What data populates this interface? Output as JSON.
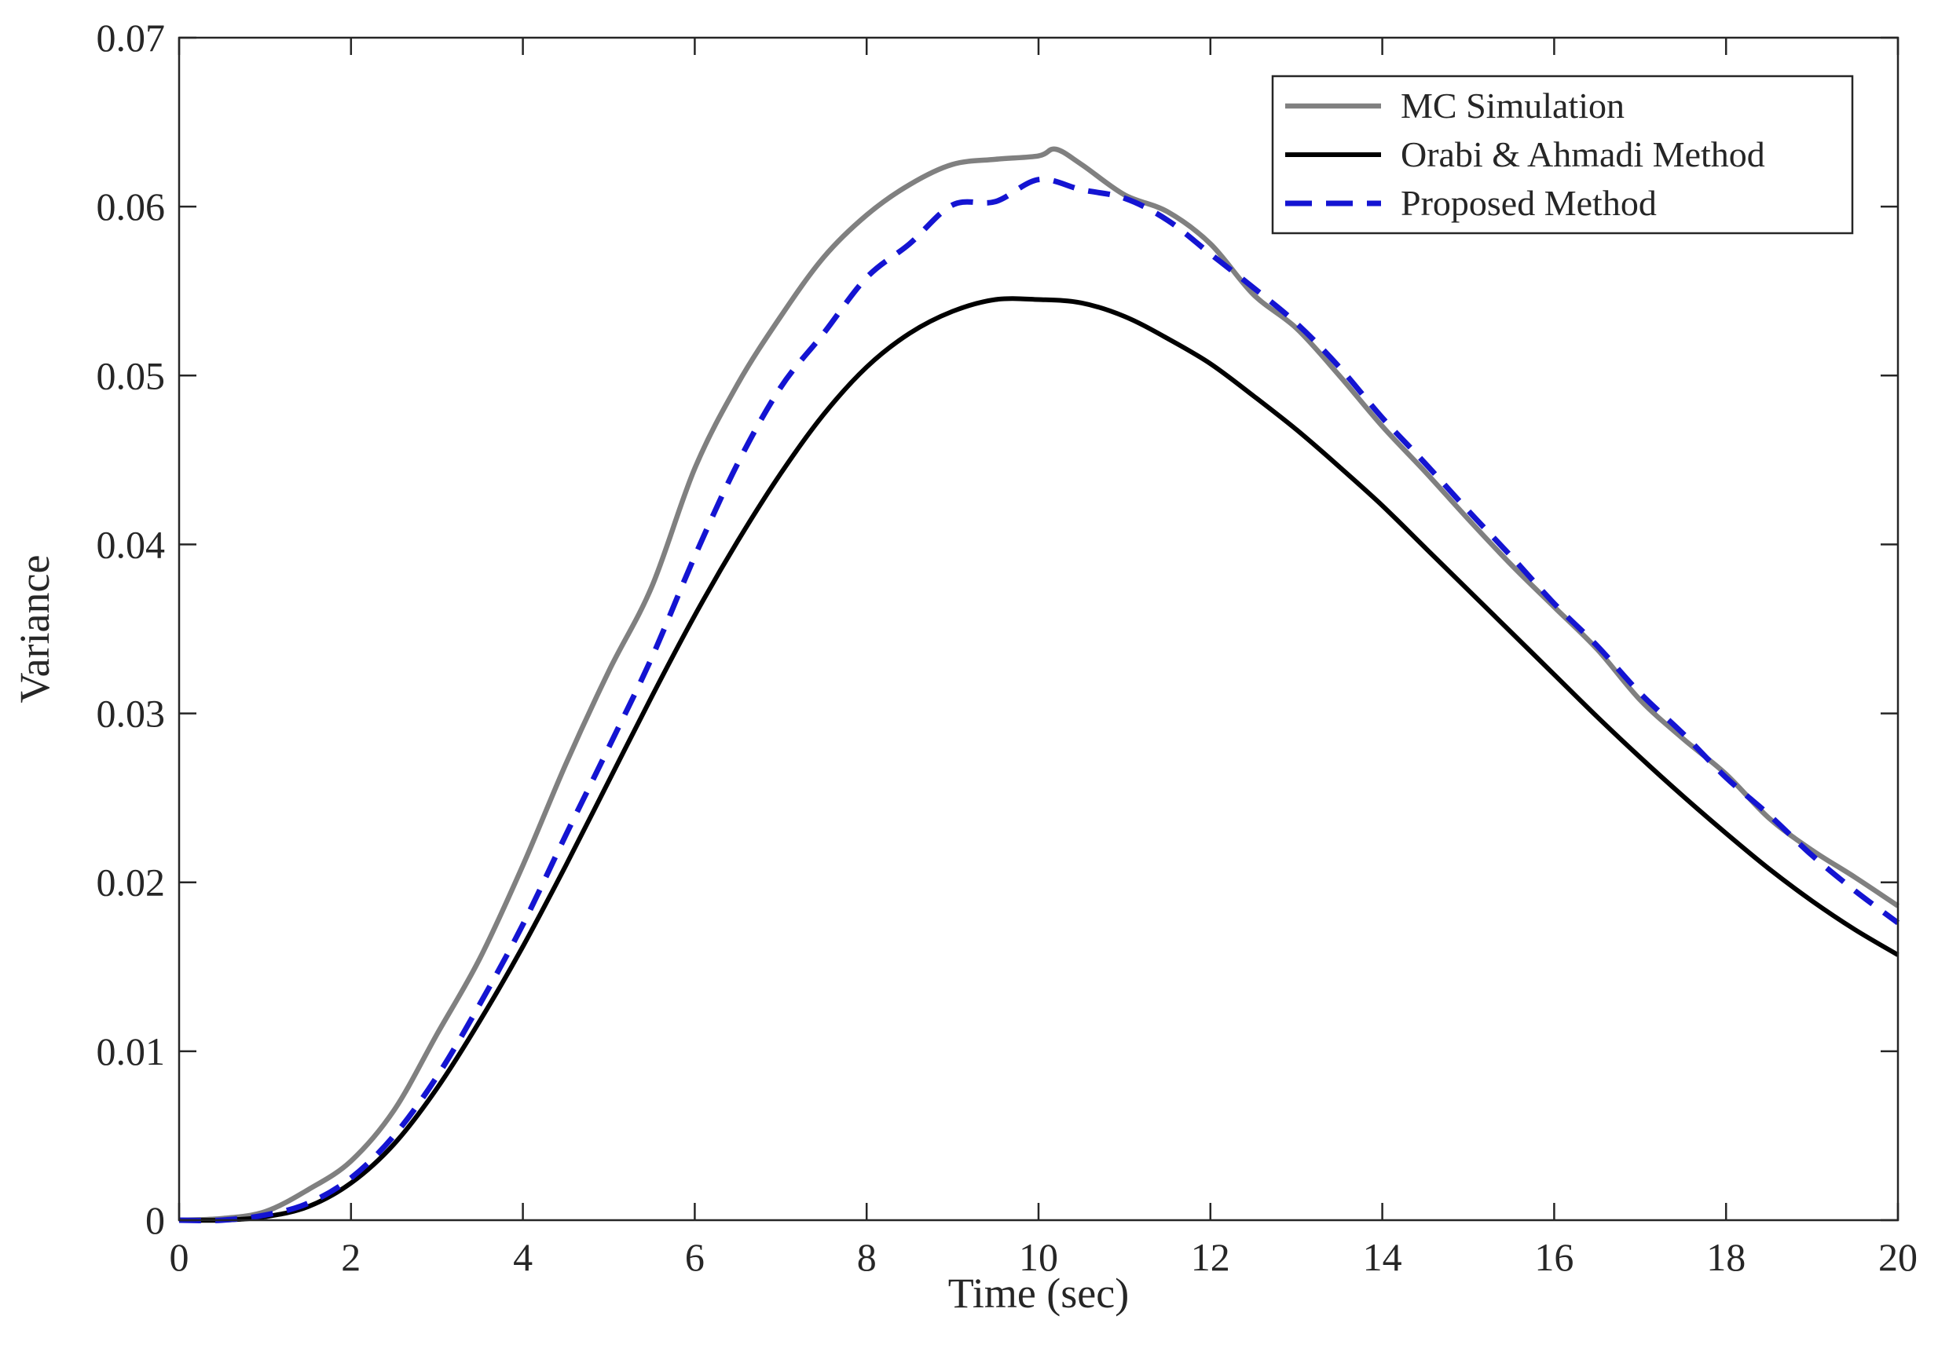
{
  "chart_data": {
    "type": "line",
    "title": "",
    "xlabel": "Time (sec)",
    "ylabel": "Variance",
    "xlim": [
      0,
      20
    ],
    "ylim": [
      0,
      0.07
    ],
    "xticks": [
      0,
      2,
      4,
      6,
      8,
      10,
      12,
      14,
      16,
      18,
      20
    ],
    "yticks": [
      0,
      0.01,
      0.02,
      0.03,
      0.04,
      0.05,
      0.06,
      0.07
    ],
    "xtick_labels": [
      "0",
      "2",
      "4",
      "6",
      "8",
      "10",
      "12",
      "14",
      "16",
      "18",
      "20"
    ],
    "ytick_labels": [
      "0",
      "0.01",
      "0.02",
      "0.03",
      "0.04",
      "0.05",
      "0.06",
      "0.07"
    ],
    "grid": false,
    "legend_position": "top-right",
    "series": [
      {
        "name": "MC Simulation",
        "color": "#808080",
        "style": "solid",
        "x": [
          0,
          0.5,
          1,
          1.5,
          2,
          2.5,
          3,
          3.5,
          4,
          4.5,
          5,
          5.5,
          6,
          6.5,
          7,
          7.5,
          8,
          8.5,
          9,
          9.5,
          10,
          10.2,
          10.5,
          11,
          11.5,
          12,
          12.5,
          13,
          13.5,
          14,
          14.5,
          15,
          15.5,
          16,
          16.5,
          17,
          17.5,
          18,
          18.5,
          19,
          19.5,
          20
        ],
        "values": [
          0,
          0.0001,
          0.0005,
          0.0018,
          0.0035,
          0.0065,
          0.011,
          0.0155,
          0.021,
          0.027,
          0.0325,
          0.0375,
          0.0445,
          0.0495,
          0.0535,
          0.057,
          0.0595,
          0.0613,
          0.0625,
          0.0628,
          0.063,
          0.0634,
          0.0625,
          0.0607,
          0.0597,
          0.0578,
          0.0548,
          0.0528,
          0.05,
          0.047,
          0.0443,
          0.0415,
          0.0388,
          0.0363,
          0.0338,
          0.0308,
          0.0285,
          0.0264,
          0.0238,
          0.0219,
          0.0203,
          0.0186
        ]
      },
      {
        "name": "Orabi & Ahmadi Method",
        "color": "#000000",
        "style": "solid",
        "x": [
          0,
          0.5,
          1,
          1.5,
          2,
          2.5,
          3,
          3.5,
          4,
          4.5,
          5,
          5.5,
          6,
          6.5,
          7,
          7.5,
          8,
          8.5,
          9,
          9.5,
          10,
          10.5,
          11,
          11.5,
          12,
          12.5,
          13,
          13.5,
          14,
          14.5,
          15,
          15.5,
          16,
          16.5,
          17,
          17.5,
          18,
          18.5,
          19,
          19.5,
          20
        ],
        "values": [
          0,
          0,
          0.0002,
          0.0008,
          0.0022,
          0.0045,
          0.0078,
          0.0118,
          0.0162,
          0.021,
          0.026,
          0.031,
          0.0358,
          0.0402,
          0.0442,
          0.0477,
          0.0505,
          0.0525,
          0.0538,
          0.0545,
          0.0545,
          0.0543,
          0.0535,
          0.0522,
          0.0507,
          0.0488,
          0.0468,
          0.0446,
          0.0423,
          0.0398,
          0.0373,
          0.0348,
          0.0323,
          0.0298,
          0.0274,
          0.0251,
          0.0229,
          0.0208,
          0.0189,
          0.0172,
          0.0157
        ]
      },
      {
        "name": "Proposed Method",
        "color": "#1414d2",
        "style": "dashed",
        "x": [
          0,
          0.5,
          1,
          1.5,
          2,
          2.5,
          3,
          3.5,
          4,
          4.5,
          5,
          5.5,
          6,
          6.5,
          7,
          7.5,
          8,
          8.5,
          9,
          9.5,
          10,
          10.5,
          11,
          11.5,
          12,
          12.5,
          13,
          13.5,
          14,
          14.5,
          15,
          15.5,
          16,
          16.5,
          17,
          17.5,
          18,
          18.5,
          19,
          19.5,
          20
        ],
        "values": [
          0,
          0,
          0.0003,
          0.001,
          0.0025,
          0.005,
          0.0085,
          0.0128,
          0.0175,
          0.0228,
          0.028,
          0.0333,
          0.0393,
          0.0448,
          0.0493,
          0.0525,
          0.0558,
          0.0578,
          0.0601,
          0.0603,
          0.0616,
          0.061,
          0.0605,
          0.0592,
          0.0572,
          0.0552,
          0.0531,
          0.0505,
          0.0475,
          0.0448,
          0.042,
          0.0393,
          0.0365,
          0.034,
          0.0312,
          0.0288,
          0.0262,
          0.024,
          0.0216,
          0.0195,
          0.0176
        ]
      }
    ]
  }
}
